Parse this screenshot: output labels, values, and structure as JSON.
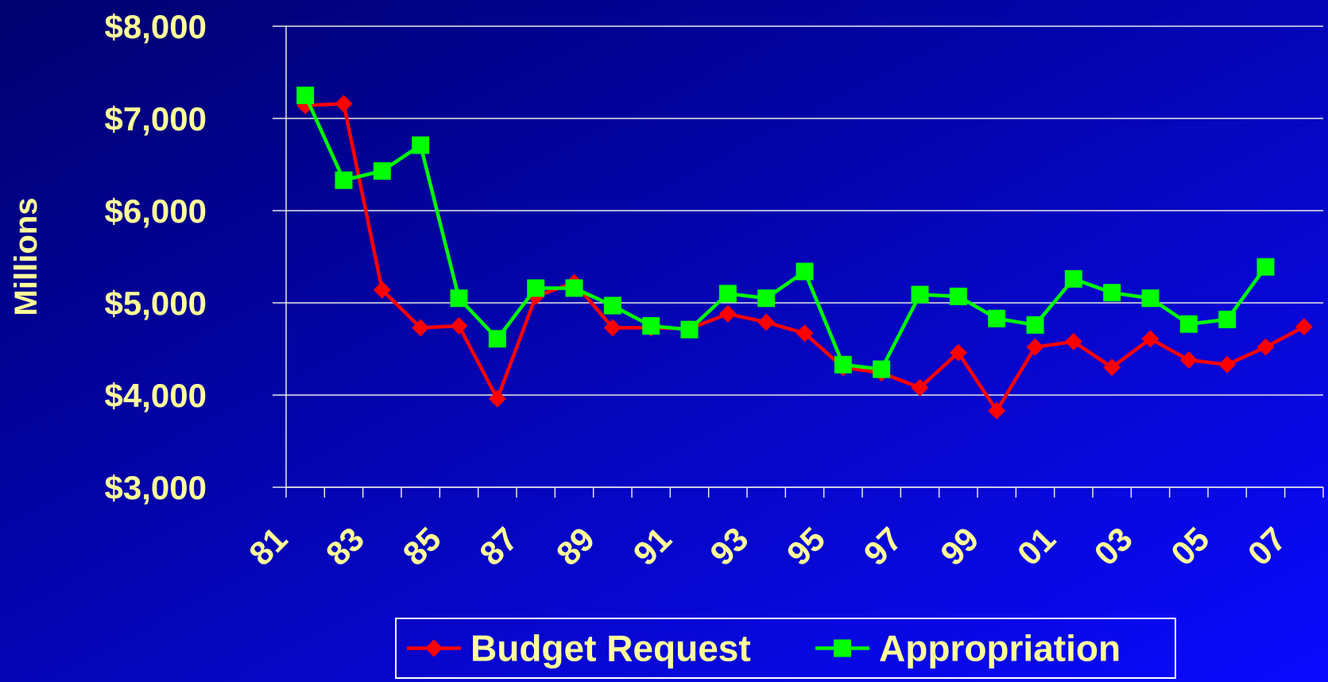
{
  "chart_data": {
    "type": "line",
    "y_label": "Millions",
    "categories": [
      "81",
      null,
      "83",
      null,
      "85",
      null,
      "87",
      null,
      "89",
      null,
      "91",
      null,
      "93",
      null,
      "95",
      null,
      "97",
      null,
      "99",
      null,
      "01",
      null,
      "03",
      null,
      "05",
      null,
      "07"
    ],
    "series": [
      {
        "name": "Budget Request",
        "color": "#ff0000",
        "marker": "diamond",
        "values": [
          7140,
          7160,
          5140,
          4730,
          4750,
          3960,
          5070,
          5220,
          4730,
          4730,
          4720,
          4880,
          4790,
          4670,
          4300,
          4240,
          4080,
          4460,
          3830,
          4520,
          4580,
          4300,
          4610,
          4380,
          4330,
          4520,
          4740
        ]
      },
      {
        "name": "Appropriation",
        "color": "#00ff00",
        "marker": "square",
        "values": [
          7250,
          6330,
          6430,
          6710,
          5050,
          4610,
          5160,
          5160,
          4970,
          4750,
          4710,
          5100,
          5050,
          5340,
          4330,
          4280,
          5090,
          5070,
          4830,
          4760,
          5260,
          5110,
          5050,
          4770,
          4820,
          5390,
          null
        ]
      }
    ],
    "ylim": [
      3000,
      8000
    ],
    "yticks": [
      {
        "value": 3000,
        "label": "$3,000"
      },
      {
        "value": 4000,
        "label": "$4,000"
      },
      {
        "value": 5000,
        "label": "$5,000"
      },
      {
        "value": 6000,
        "label": "$6,000"
      },
      {
        "value": 7000,
        "label": "$7,000"
      },
      {
        "value": 8000,
        "label": "$8,000"
      }
    ],
    "grid": true,
    "legend": "bottom"
  }
}
